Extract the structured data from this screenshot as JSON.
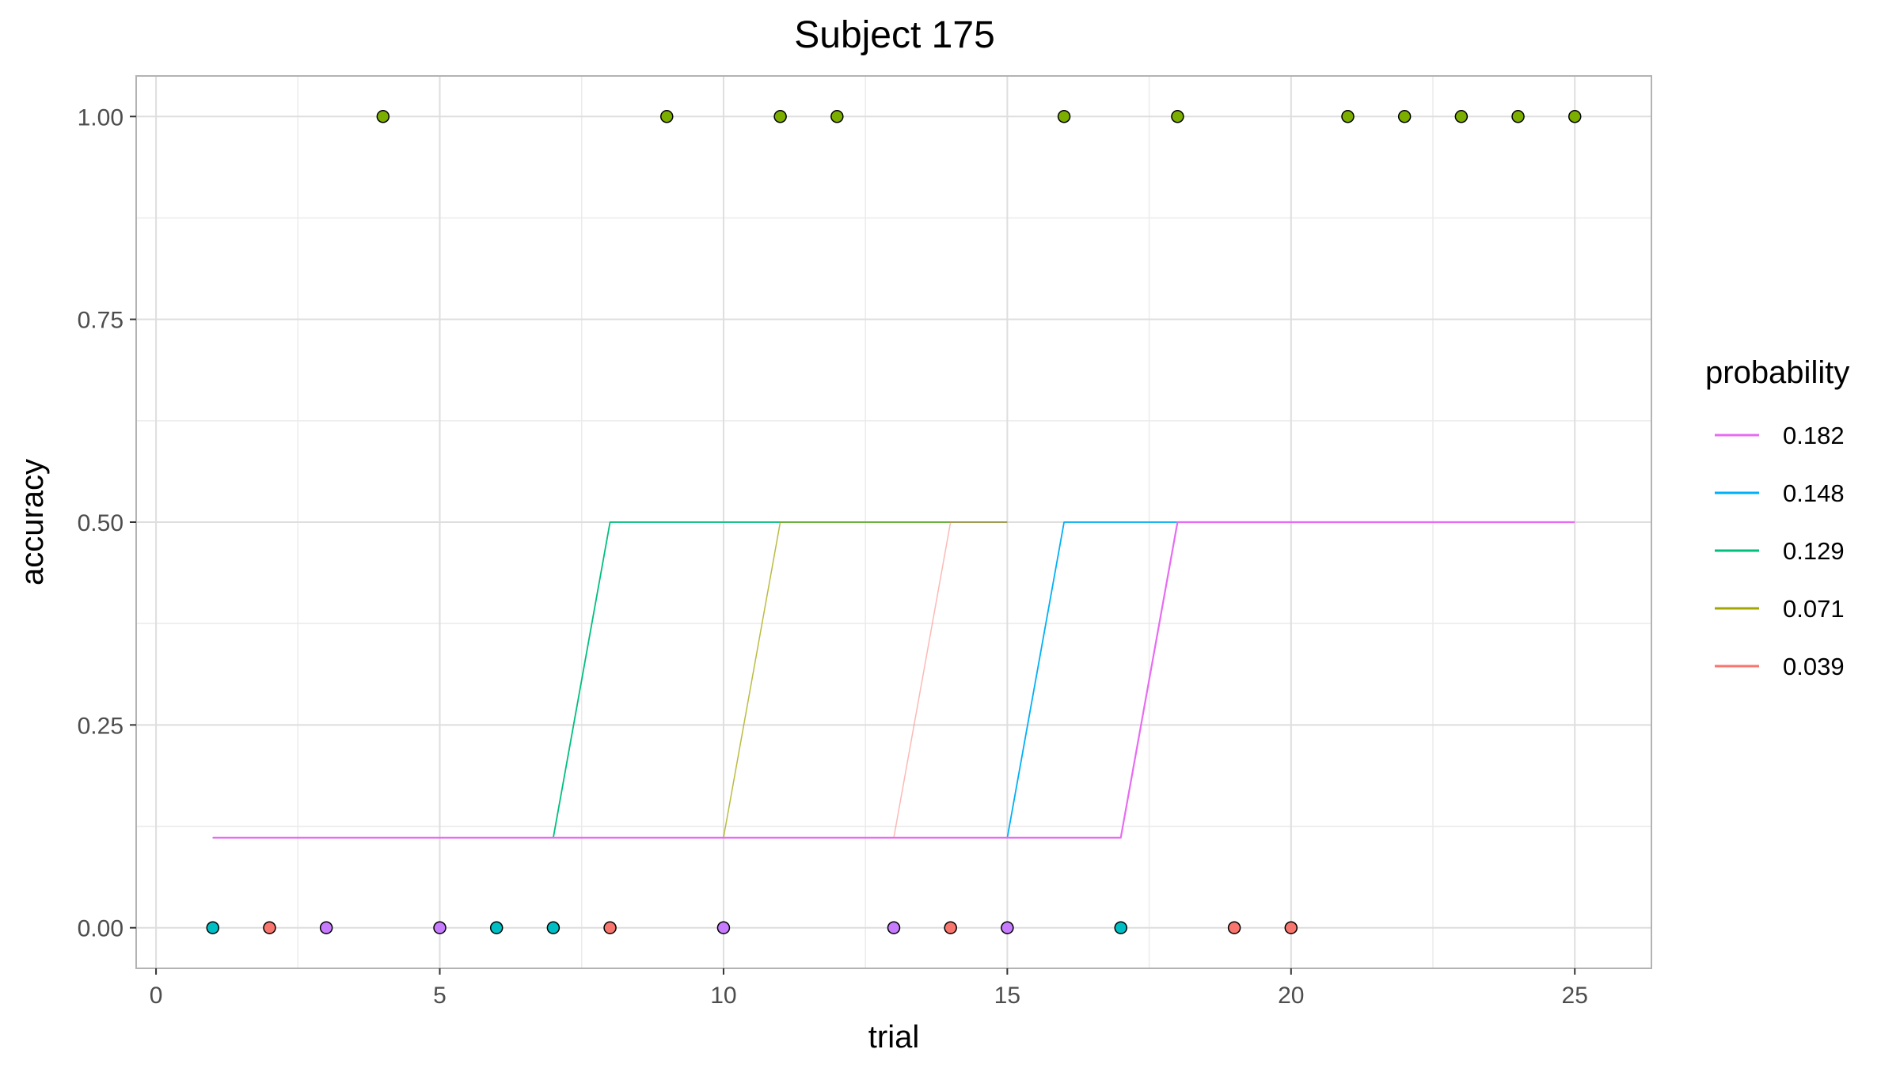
{
  "chart_data": {
    "type": "line",
    "title": "Subject 175",
    "xlabel": "trial",
    "ylabel": "accuracy",
    "xlim": [
      -0.35,
      26.35
    ],
    "ylim": [
      -0.05,
      1.05
    ],
    "x_ticks": [
      0,
      5,
      10,
      15,
      20,
      25
    ],
    "y_ticks": [
      0.0,
      0.25,
      0.5,
      0.75,
      1.0
    ],
    "x_tick_labels": [
      "0",
      "5",
      "10",
      "15",
      "20",
      "25"
    ],
    "y_tick_labels": [
      "0.00",
      "0.25",
      "0.50",
      "0.75",
      "1.00"
    ],
    "grid": true,
    "legend": {
      "title": "probability",
      "position": "right",
      "entries": [
        {
          "label": "0.182",
          "color": "#E76BF3"
        },
        {
          "label": "0.148",
          "color": "#00B0F6"
        },
        {
          "label": "0.129",
          "color": "#00BF7D"
        },
        {
          "label": "0.071",
          "color": "#A3A500"
        },
        {
          "label": "0.039",
          "color": "#F8766D"
        }
      ]
    },
    "series": [
      {
        "name": "0.129",
        "color": "#00BF7D",
        "width": 1.8,
        "opacity": 1.0,
        "x": [
          1,
          7,
          8,
          15
        ],
        "y": [
          0.111,
          0.111,
          0.5,
          0.5
        ]
      },
      {
        "name": "0.071",
        "color": "#A3A500",
        "width": 1.5,
        "opacity": 0.75,
        "x": [
          1,
          10,
          11,
          15
        ],
        "y": [
          0.111,
          0.111,
          0.5,
          0.5
        ]
      },
      {
        "name": "0.039",
        "color": "#F8766D",
        "width": 1.5,
        "opacity": 0.5,
        "x": [
          1,
          13,
          14,
          15
        ],
        "y": [
          0.111,
          0.111,
          0.5,
          0.5
        ]
      },
      {
        "name": "0.148",
        "color": "#00B0F6",
        "width": 1.8,
        "opacity": 1.0,
        "x": [
          1,
          15,
          16,
          18
        ],
        "y": [
          0.111,
          0.111,
          0.5,
          0.5
        ]
      },
      {
        "name": "0.182",
        "color": "#E76BF3",
        "width": 2.2,
        "opacity": 1.0,
        "x": [
          1,
          17,
          18,
          25
        ],
        "y": [
          0.111,
          0.111,
          0.5,
          0.5
        ]
      }
    ],
    "points": [
      {
        "x": 1,
        "y": 0,
        "color": "#00BFC4"
      },
      {
        "x": 2,
        "y": 0,
        "color": "#F8766D"
      },
      {
        "x": 3,
        "y": 0,
        "color": "#C77CFF"
      },
      {
        "x": 4,
        "y": 1,
        "color": "#7CAE00"
      },
      {
        "x": 5,
        "y": 0,
        "color": "#C77CFF"
      },
      {
        "x": 6,
        "y": 0,
        "color": "#00BFC4"
      },
      {
        "x": 7,
        "y": 0,
        "color": "#00BFC4"
      },
      {
        "x": 8,
        "y": 0,
        "color": "#F8766D"
      },
      {
        "x": 9,
        "y": 1,
        "color": "#7CAE00"
      },
      {
        "x": 10,
        "y": 0,
        "color": "#C77CFF"
      },
      {
        "x": 11,
        "y": 1,
        "color": "#7CAE00"
      },
      {
        "x": 12,
        "y": 1,
        "color": "#7CAE00"
      },
      {
        "x": 13,
        "y": 0,
        "color": "#C77CFF"
      },
      {
        "x": 14,
        "y": 0,
        "color": "#F8766D"
      },
      {
        "x": 15,
        "y": 0,
        "color": "#C77CFF"
      },
      {
        "x": 16,
        "y": 1,
        "color": "#7CAE00"
      },
      {
        "x": 17,
        "y": 0,
        "color": "#00BFC4"
      },
      {
        "x": 18,
        "y": 1,
        "color": "#7CAE00"
      },
      {
        "x": 19,
        "y": 0,
        "color": "#F8766D"
      },
      {
        "x": 20,
        "y": 0,
        "color": "#F8766D"
      },
      {
        "x": 21,
        "y": 1,
        "color": "#7CAE00"
      },
      {
        "x": 22,
        "y": 1,
        "color": "#7CAE00"
      },
      {
        "x": 23,
        "y": 1,
        "color": "#7CAE00"
      },
      {
        "x": 24,
        "y": 1,
        "color": "#7CAE00"
      },
      {
        "x": 25,
        "y": 1,
        "color": "#7CAE00"
      }
    ]
  }
}
